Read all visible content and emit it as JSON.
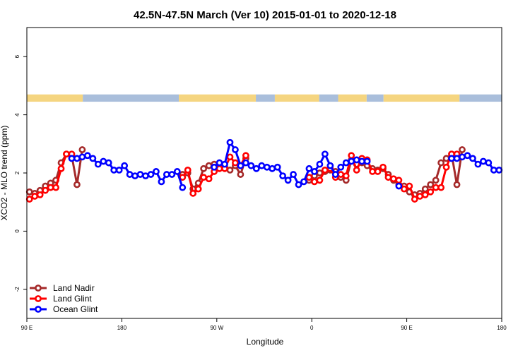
{
  "chart_data": {
    "type": "line",
    "title": "42.5N-47.5N March (Ver 10)   2015-01-01 to 2020-12-18",
    "xlabel": "Longitude",
    "ylabel": "XCO2 - MLO trend (ppm)",
    "xlim": [
      -90,
      360
    ],
    "ylim": [
      -3,
      7
    ],
    "x_ticks": [
      {
        "value": -90,
        "label": "90 E"
      },
      {
        "value": 0,
        "label": "180"
      },
      {
        "value": 90,
        "label": "90 W"
      },
      {
        "value": 180,
        "label": "0"
      },
      {
        "value": 270,
        "label": "90 E"
      },
      {
        "value": 360,
        "label": "180"
      }
    ],
    "y_ticks": [
      -2,
      0,
      2,
      4,
      6
    ],
    "grid": false,
    "legend_position": "bottom-left",
    "land_ocean_strip": {
      "y_range": [
        4.45,
        4.7
      ],
      "land_color": "#f5d580",
      "ocean_color": "#a9bedb",
      "segments": [
        {
          "from": -90,
          "to": -37,
          "type": "land"
        },
        {
          "from": -37,
          "to": 54,
          "type": "ocean"
        },
        {
          "from": 54,
          "to": 127,
          "type": "land"
        },
        {
          "from": 127,
          "to": 145,
          "type": "ocean"
        },
        {
          "from": 145,
          "to": 187,
          "type": "land"
        },
        {
          "from": 187,
          "to": 205,
          "type": "ocean"
        },
        {
          "from": 205,
          "to": 232,
          "type": "land"
        },
        {
          "from": 232,
          "to": 248,
          "type": "ocean"
        },
        {
          "from": 248,
          "to": 320,
          "type": "land"
        },
        {
          "from": 320,
          "to": 360,
          "type": "ocean"
        }
      ]
    },
    "series": [
      {
        "name": "Land Nadir",
        "color": "#a52a2a",
        "points": [
          [
            -87.5,
            1.35
          ],
          [
            -82.5,
            1.3
          ],
          [
            -77.5,
            1.4
          ],
          [
            -72.5,
            1.55
          ],
          [
            -67.5,
            1.65
          ],
          [
            -62.5,
            1.75
          ],
          [
            -57.5,
            2.35
          ],
          [
            -52.5,
            2.65
          ],
          [
            -47.5,
            2.6
          ],
          [
            -42.5,
            1.6
          ],
          [
            -37.5,
            2.8
          ],
          [
            57.5,
            1.95
          ],
          [
            62.5,
            2.0
          ],
          [
            67.5,
            1.45
          ],
          [
            72.5,
            1.65
          ],
          [
            77.5,
            2.15
          ],
          [
            82.5,
            2.25
          ],
          [
            87.5,
            2.3
          ],
          [
            92.5,
            2.25
          ],
          [
            97.5,
            2.2
          ],
          [
            102.5,
            2.1
          ],
          [
            107.5,
            2.25
          ],
          [
            112.5,
            1.95
          ],
          [
            117.5,
            2.5
          ],
          [
            177.5,
            1.75
          ],
          [
            182.5,
            1.9
          ],
          [
            187.5,
            2.0
          ],
          [
            192.5,
            2.05
          ],
          [
            197.5,
            2.1
          ],
          [
            202.5,
            2.05
          ],
          [
            207.5,
            1.85
          ],
          [
            212.5,
            1.75
          ],
          [
            217.5,
            2.45
          ],
          [
            222.5,
            2.3
          ],
          [
            227.5,
            2.35
          ],
          [
            232.5,
            2.25
          ],
          [
            237.5,
            2.15
          ],
          [
            242.5,
            2.1
          ],
          [
            247.5,
            2.15
          ],
          [
            252.5,
            1.95
          ],
          [
            257.5,
            1.75
          ],
          [
            262.5,
            1.6
          ],
          [
            267.5,
            1.55
          ],
          [
            272.5,
            1.35
          ],
          [
            277.5,
            1.25
          ],
          [
            282.5,
            1.3
          ],
          [
            287.5,
            1.45
          ],
          [
            292.5,
            1.6
          ],
          [
            297.5,
            1.75
          ],
          [
            302.5,
            2.35
          ],
          [
            307.5,
            2.5
          ],
          [
            312.5,
            2.65
          ],
          [
            317.5,
            1.6
          ],
          [
            322.5,
            2.8
          ]
        ]
      },
      {
        "name": "Land Glint",
        "color": "#ff0000",
        "points": [
          [
            -87.5,
            1.1
          ],
          [
            -82.5,
            1.2
          ],
          [
            -77.5,
            1.25
          ],
          [
            -72.5,
            1.4
          ],
          [
            -67.5,
            1.5
          ],
          [
            -62.5,
            1.5
          ],
          [
            -57.5,
            2.15
          ],
          [
            -52.5,
            2.65
          ],
          [
            -47.5,
            2.65
          ],
          [
            57.5,
            1.85
          ],
          [
            62.5,
            2.1
          ],
          [
            67.5,
            1.3
          ],
          [
            72.5,
            1.45
          ],
          [
            77.5,
            1.85
          ],
          [
            82.5,
            1.8
          ],
          [
            87.5,
            2.05
          ],
          [
            92.5,
            2.15
          ],
          [
            97.5,
            2.15
          ],
          [
            102.5,
            2.55
          ],
          [
            107.5,
            2.35
          ],
          [
            112.5,
            2.25
          ],
          [
            117.5,
            2.6
          ],
          [
            177.5,
            1.85
          ],
          [
            182.5,
            1.7
          ],
          [
            187.5,
            1.75
          ],
          [
            192.5,
            2.1
          ],
          [
            197.5,
            2.15
          ],
          [
            202.5,
            1.85
          ],
          [
            207.5,
            1.95
          ],
          [
            212.5,
            1.9
          ],
          [
            217.5,
            2.6
          ],
          [
            222.5,
            2.1
          ],
          [
            227.5,
            2.5
          ],
          [
            232.5,
            2.45
          ],
          [
            237.5,
            2.05
          ],
          [
            242.5,
            2.05
          ],
          [
            247.5,
            2.2
          ],
          [
            252.5,
            1.85
          ],
          [
            257.5,
            1.8
          ],
          [
            262.5,
            1.75
          ],
          [
            267.5,
            1.45
          ],
          [
            272.5,
            1.55
          ],
          [
            277.5,
            1.1
          ],
          [
            282.5,
            1.2
          ],
          [
            287.5,
            1.25
          ],
          [
            292.5,
            1.35
          ],
          [
            297.5,
            1.5
          ],
          [
            302.5,
            1.5
          ],
          [
            307.5,
            2.2
          ],
          [
            312.5,
            2.65
          ],
          [
            317.5,
            2.65
          ]
        ]
      },
      {
        "name": "Ocean Glint",
        "color": "#0000ff",
        "points": [
          [
            -47.5,
            2.5
          ],
          [
            -42.5,
            2.5
          ],
          [
            -37.5,
            2.55
          ],
          [
            -32.5,
            2.6
          ],
          [
            -27.5,
            2.5
          ],
          [
            -22.5,
            2.3
          ],
          [
            -17.5,
            2.4
          ],
          [
            -12.5,
            2.35
          ],
          [
            -7.5,
            2.1
          ],
          [
            -2.5,
            2.1
          ],
          [
            2.5,
            2.25
          ],
          [
            7.5,
            1.95
          ],
          [
            12.5,
            1.9
          ],
          [
            17.5,
            1.95
          ],
          [
            22.5,
            1.9
          ],
          [
            27.5,
            1.95
          ],
          [
            32.5,
            2.05
          ],
          [
            37.5,
            1.7
          ],
          [
            42.5,
            1.95
          ],
          [
            47.5,
            1.95
          ],
          [
            52.5,
            2.05
          ],
          [
            57.5,
            1.5
          ],
          [
            87.5,
            2.2
          ],
          [
            92.5,
            2.35
          ],
          [
            97.5,
            2.3
          ],
          [
            102.5,
            3.05
          ],
          [
            107.5,
            2.8
          ],
          [
            112.5,
            2.25
          ],
          [
            117.5,
            2.35
          ],
          [
            122.5,
            2.25
          ],
          [
            127.5,
            2.15
          ],
          [
            132.5,
            2.25
          ],
          [
            137.5,
            2.2
          ],
          [
            142.5,
            2.15
          ],
          [
            147.5,
            2.2
          ],
          [
            152.5,
            1.9
          ],
          [
            157.5,
            1.75
          ],
          [
            162.5,
            1.95
          ],
          [
            167.5,
            1.6
          ],
          [
            172.5,
            1.7
          ],
          [
            177.5,
            2.15
          ],
          [
            182.5,
            2.05
          ],
          [
            187.5,
            2.3
          ],
          [
            192.5,
            2.65
          ],
          [
            197.5,
            2.25
          ],
          [
            202.5,
            1.95
          ],
          [
            207.5,
            2.2
          ],
          [
            212.5,
            2.35
          ],
          [
            217.5,
            2.4
          ],
          [
            222.5,
            2.45
          ],
          [
            227.5,
            2.4
          ],
          [
            232.5,
            2.4
          ],
          [
            262.5,
            1.55
          ],
          [
            312.5,
            2.5
          ],
          [
            317.5,
            2.5
          ],
          [
            322.5,
            2.55
          ],
          [
            327.5,
            2.6
          ],
          [
            332.5,
            2.5
          ],
          [
            337.5,
            2.3
          ],
          [
            342.5,
            2.4
          ],
          [
            347.5,
            2.35
          ],
          [
            352.5,
            2.1
          ],
          [
            357.5,
            2.1
          ]
        ]
      }
    ]
  }
}
